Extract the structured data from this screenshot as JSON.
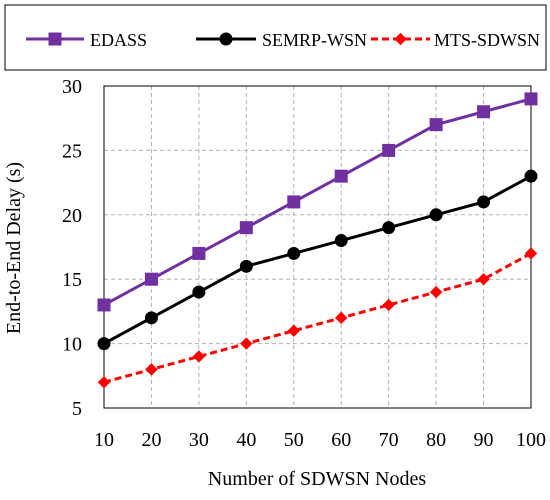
{
  "chart_data": {
    "type": "line",
    "title": "",
    "xlabel": "Number of SDWSN Nodes",
    "ylabel": "End-to-End Delay (s)",
    "x": [
      10,
      20,
      30,
      40,
      50,
      60,
      70,
      80,
      90,
      100
    ],
    "xlim": [
      10,
      100
    ],
    "ylim": [
      5,
      30
    ],
    "xticks": [
      10,
      20,
      30,
      40,
      50,
      60,
      70,
      80,
      90,
      100
    ],
    "yticks": [
      5,
      10,
      15,
      20,
      25,
      30
    ],
    "grid": true,
    "legend_position": "top",
    "series": [
      {
        "name": "EDASS",
        "color": "#7030A0",
        "marker": "square",
        "line_style": "solid",
        "values": [
          13,
          15,
          17,
          19,
          21,
          23,
          25,
          27,
          28,
          29
        ]
      },
      {
        "name": "SEMRP-WSN",
        "color": "#000000",
        "marker": "circle",
        "line_style": "solid",
        "values": [
          10,
          12,
          14,
          16,
          17,
          18,
          19,
          20,
          21,
          23
        ]
      },
      {
        "name": "MTS-SDWSN",
        "color": "#FF0000",
        "marker": "diamond",
        "line_style": "dashed",
        "values": [
          7,
          8,
          9,
          10,
          11,
          12,
          13,
          14,
          15,
          17
        ]
      }
    ]
  }
}
